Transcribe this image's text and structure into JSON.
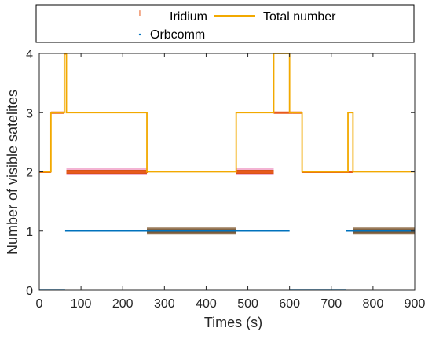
{
  "chart_data": {
    "type": "line",
    "xlabel": "Times (s)",
    "ylabel": "Number of visible satelites",
    "xlim": [
      0,
      900
    ],
    "ylim": [
      0,
      4
    ],
    "xticks": [
      0,
      100,
      200,
      300,
      400,
      500,
      600,
      700,
      800,
      900
    ],
    "yticks": [
      0,
      1,
      2,
      3,
      4
    ],
    "grid": false,
    "legend": {
      "placement": "top-outside",
      "entries": [
        "Iridium",
        "Orbcomm",
        "Total number"
      ]
    },
    "colors": {
      "iridium": "#e85a1c",
      "iridium_halo": "#f3b3d3",
      "orbcomm": "#0072bd",
      "orbcomm_halo": "#9a7b5a",
      "total": "#f2a900"
    },
    "series": [
      {
        "name": "Iridium",
        "marker": "+",
        "segments": [
          {
            "x": [
              0,
              28
            ],
            "y": 2
          },
          {
            "x": [
              28,
              60
            ],
            "y": 3
          },
          {
            "x": [
              60,
              65
            ],
            "y": 4
          },
          {
            "x": [
              65,
              260
            ],
            "y": 2
          },
          {
            "x": [
              472,
              562
            ],
            "y": 2
          },
          {
            "x": [
              562,
              608
            ],
            "y": 3
          },
          {
            "x": [
              608,
              630
            ],
            "y": 3
          },
          {
            "x": [
              630,
              735
            ],
            "y": 2
          },
          {
            "x": [
              735,
              752
            ],
            "y": 2
          }
        ]
      },
      {
        "name": "Orbcomm",
        "marker": ".",
        "segments": [
          {
            "x": [
              0,
              62
            ],
            "y": 0
          },
          {
            "x": [
              62,
              600
            ],
            "y": 1
          },
          {
            "x": [
              600,
              735
            ],
            "y": 0
          },
          {
            "x": [
              735,
              900
            ],
            "y": 1
          }
        ]
      },
      {
        "name": "Total number",
        "x": [
          0,
          28,
          28,
          60,
          60,
          65,
          65,
          258,
          258,
          472,
          472,
          562,
          562,
          600,
          600,
          608,
          608,
          630,
          630,
          735,
          735,
          740,
          740,
          752,
          752,
          900
        ],
        "y": [
          2,
          2,
          3,
          3,
          4,
          4,
          3,
          3,
          2,
          2,
          3,
          3,
          4,
          4,
          3,
          3,
          3,
          3,
          2,
          2,
          2,
          2,
          3,
          3,
          2,
          2
        ]
      }
    ],
    "bold_bands": [
      {
        "series": "Iridium",
        "x": [
          65,
          258
        ],
        "y": 2
      },
      {
        "series": "Iridium",
        "x": [
          472,
          562
        ],
        "y": 2
      },
      {
        "series": "Orbcomm",
        "x": [
          258,
          472
        ],
        "y": 1
      },
      {
        "series": "Orbcomm",
        "x": [
          752,
          900
        ],
        "y": 1
      }
    ]
  }
}
